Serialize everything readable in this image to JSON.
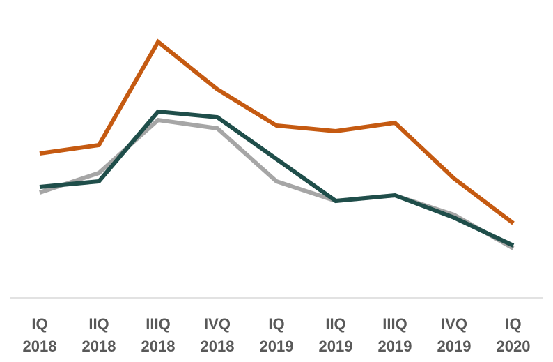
{
  "chart_data": {
    "type": "line",
    "title": "",
    "xlabel": "",
    "ylabel": "",
    "categories": [
      [
        "IQ",
        "2018"
      ],
      [
        "IIQ",
        "2018"
      ],
      [
        "IIIQ",
        "2018"
      ],
      [
        "IVQ",
        "2018"
      ],
      [
        "IQ",
        "2019"
      ],
      [
        "IIQ",
        "2019"
      ],
      [
        "IIIQ",
        "2019"
      ],
      [
        "IVQ",
        "2019"
      ],
      [
        "IQ",
        "2020"
      ]
    ],
    "ylim": [
      0,
      100
    ],
    "grid": false,
    "legend": "none",
    "series": [
      {
        "color": "#a6a6a6",
        "values": [
          36,
          43,
          62,
          59,
          40,
          33,
          35,
          28,
          16
        ]
      },
      {
        "color": "#c55a11",
        "values": [
          50,
          53,
          90,
          73,
          60,
          58,
          61,
          41,
          25
        ]
      },
      {
        "color": "#1f4e4a",
        "values": [
          38,
          40,
          65,
          63,
          48,
          33,
          35,
          27,
          17
        ]
      }
    ]
  }
}
